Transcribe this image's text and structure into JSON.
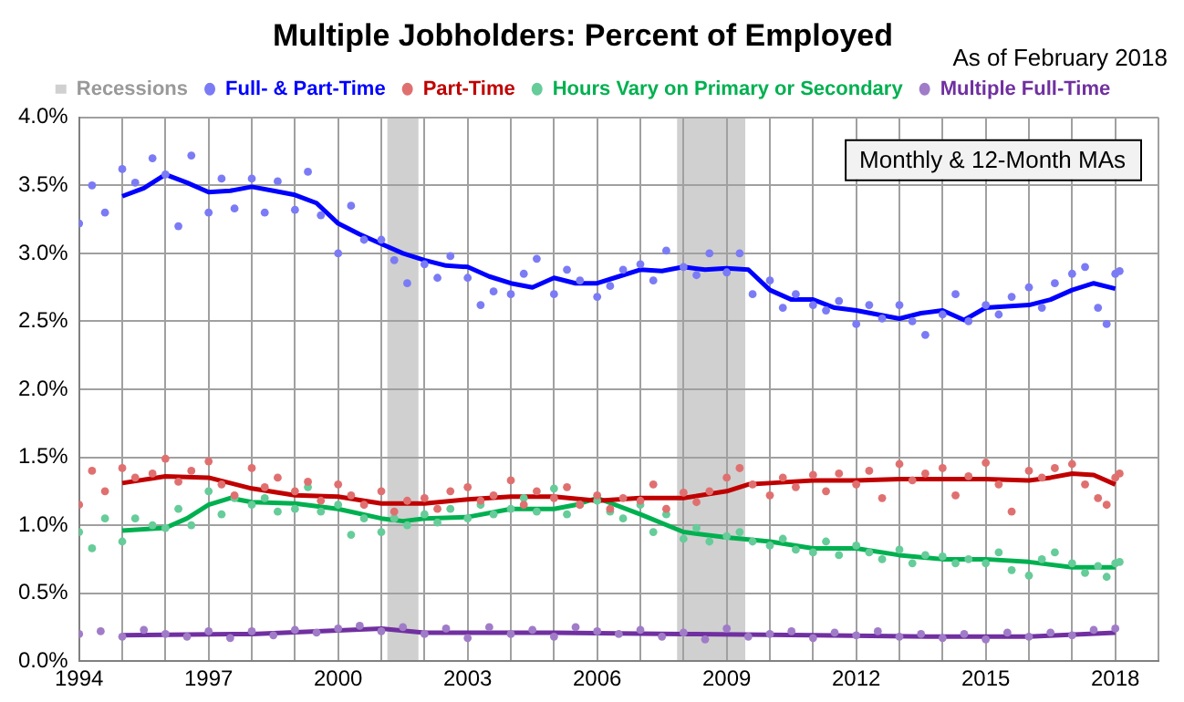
{
  "chart_data": {
    "type": "scatter",
    "title": "Multiple Jobholders: Percent of Employed",
    "annotations": [
      "As of February 2018",
      "Monthly & 12-Month MAs"
    ],
    "xlim": [
      1994,
      2019
    ],
    "xticks": [
      1994,
      {
        "value": 1995,
        "label": null
      },
      {
        "value": 1996,
        "label": null
      },
      1997,
      {
        "value": 1998,
        "label": null
      },
      {
        "value": 1999,
        "label": null
      },
      2000,
      {
        "value": 2001,
        "label": null
      },
      {
        "value": 2002,
        "label": null
      },
      2003,
      {
        "value": 2004,
        "label": null
      },
      {
        "value": 2005,
        "label": null
      },
      2006,
      {
        "value": 2007,
        "label": null
      },
      {
        "value": 2008,
        "label": null
      },
      2009,
      {
        "value": 2010,
        "label": null
      },
      {
        "value": 2011,
        "label": null
      },
      2012,
      {
        "value": 2013,
        "label": null
      },
      {
        "value": 2014,
        "label": null
      },
      2015,
      {
        "value": 2016,
        "label": null
      },
      {
        "value": 2017,
        "label": null
      },
      2018,
      {
        "value": 2019,
        "label": null
      }
    ],
    "ylim": [
      0,
      4
    ],
    "yticks": [
      {
        "value": 0,
        "label": "0.0%"
      },
      {
        "value": 0.5,
        "label": "0.5%"
      },
      {
        "value": 1,
        "label": "1.0%"
      },
      {
        "value": 1.5,
        "label": "1.5%"
      },
      {
        "value": 2,
        "label": "2.0%"
      },
      {
        "value": 2.5,
        "label": "2.5%"
      },
      {
        "value": 3,
        "label": "3.0%"
      },
      {
        "value": 3.5,
        "label": "3.5%"
      },
      {
        "value": 4,
        "label": "4.0%"
      }
    ],
    "grid": true,
    "legend": "top",
    "bands": [
      {
        "axis": "x",
        "from": 2001.14,
        "to": 2001.86,
        "label": "Recessions",
        "color": "#d0d0d0"
      },
      {
        "axis": "x",
        "from": 2007.85,
        "to": 2009.43,
        "color": "#d0d0d0"
      }
    ],
    "series": [
      {
        "name": "Full- & Part-Time",
        "marker": "circle",
        "color": "#7b7bf5",
        "x": [
          1994.0,
          1994.3,
          1994.6,
          1995.0,
          1995.3,
          1995.7,
          1996.0,
          1996.3,
          1996.6,
          1997.0,
          1997.3,
          1997.6,
          1998.0,
          1998.3,
          1998.6,
          1999.0,
          1999.3,
          1999.6,
          2000.0,
          2000.3,
          2000.6,
          2001.0,
          2001.3,
          2001.6,
          2002.0,
          2002.3,
          2002.6,
          2003.0,
          2003.3,
          2003.6,
          2004.0,
          2004.3,
          2004.6,
          2005.0,
          2005.3,
          2005.6,
          2006.0,
          2006.3,
          2006.6,
          2007.0,
          2007.3,
          2007.6,
          2008.0,
          2008.3,
          2008.6,
          2009.0,
          2009.3,
          2009.6,
          2010.0,
          2010.3,
          2010.6,
          2011.0,
          2011.3,
          2011.6,
          2012.0,
          2012.3,
          2012.6,
          2013.0,
          2013.3,
          2013.6,
          2014.0,
          2014.3,
          2014.6,
          2015.0,
          2015.3,
          2015.6,
          2016.0,
          2016.3,
          2016.6,
          2017.0,
          2017.3,
          2017.6,
          2017.8,
          2018.0,
          2018.1
        ],
        "values": [
          3.22,
          3.5,
          3.3,
          3.62,
          3.52,
          3.7,
          3.58,
          3.2,
          3.72,
          3.3,
          3.55,
          3.33,
          3.55,
          3.3,
          3.53,
          3.32,
          3.6,
          3.28,
          3.0,
          3.35,
          3.1,
          3.1,
          2.95,
          2.78,
          2.92,
          2.82,
          2.98,
          2.82,
          2.62,
          2.72,
          2.7,
          2.85,
          2.96,
          2.7,
          2.88,
          2.8,
          2.68,
          2.76,
          2.88,
          2.92,
          2.8,
          3.02,
          2.9,
          2.84,
          3.0,
          2.86,
          3.0,
          2.7,
          2.8,
          2.6,
          2.7,
          2.62,
          2.58,
          2.65,
          2.48,
          2.62,
          2.52,
          2.62,
          2.5,
          2.4,
          2.55,
          2.7,
          2.5,
          2.62,
          2.55,
          2.68,
          2.75,
          2.6,
          2.78,
          2.85,
          2.9,
          2.6,
          2.48,
          2.85,
          2.87
        ]
      },
      {
        "name": "Part-Time",
        "marker": "circle",
        "color": "#e07070",
        "x": [
          1994.0,
          1994.3,
          1994.6,
          1995.0,
          1995.3,
          1995.7,
          1996.0,
          1996.3,
          1996.6,
          1997.0,
          1997.3,
          1997.6,
          1998.0,
          1998.3,
          1998.6,
          1999.0,
          1999.3,
          1999.6,
          2000.0,
          2000.3,
          2000.6,
          2001.0,
          2001.3,
          2001.6,
          2002.0,
          2002.3,
          2002.6,
          2003.0,
          2003.3,
          2003.6,
          2004.0,
          2004.3,
          2004.6,
          2005.0,
          2005.3,
          2005.6,
          2006.0,
          2006.3,
          2006.6,
          2007.0,
          2007.3,
          2007.6,
          2008.0,
          2008.3,
          2008.6,
          2009.0,
          2009.3,
          2009.6,
          2010.0,
          2010.3,
          2010.6,
          2011.0,
          2011.3,
          2011.6,
          2012.0,
          2012.3,
          2012.6,
          2013.0,
          2013.3,
          2013.6,
          2014.0,
          2014.3,
          2014.6,
          2015.0,
          2015.3,
          2015.6,
          2016.0,
          2016.3,
          2016.6,
          2017.0,
          2017.3,
          2017.6,
          2017.8,
          2018.0,
          2018.1
        ],
        "values": [
          1.15,
          1.4,
          1.25,
          1.42,
          1.35,
          1.38,
          1.49,
          1.32,
          1.4,
          1.47,
          1.3,
          1.22,
          1.42,
          1.28,
          1.35,
          1.25,
          1.32,
          1.18,
          1.3,
          1.22,
          1.15,
          1.25,
          1.1,
          1.18,
          1.2,
          1.12,
          1.25,
          1.28,
          1.18,
          1.22,
          1.33,
          1.15,
          1.25,
          1.2,
          1.28,
          1.15,
          1.22,
          1.12,
          1.2,
          1.18,
          1.3,
          1.12,
          1.24,
          1.17,
          1.25,
          1.35,
          1.42,
          1.3,
          1.22,
          1.35,
          1.28,
          1.37,
          1.25,
          1.38,
          1.3,
          1.4,
          1.2,
          1.45,
          1.33,
          1.38,
          1.42,
          1.22,
          1.36,
          1.46,
          1.3,
          1.1,
          1.4,
          1.35,
          1.42,
          1.45,
          1.3,
          1.2,
          1.15,
          1.35,
          1.38
        ]
      },
      {
        "name": "Hours Vary on Primary or Secondary",
        "marker": "circle",
        "color": "#66cc99",
        "x": [
          1994.0,
          1994.3,
          1994.6,
          1995.0,
          1995.3,
          1995.7,
          1996.0,
          1996.3,
          1996.6,
          1997.0,
          1997.3,
          1997.6,
          1998.0,
          1998.3,
          1998.6,
          1999.0,
          1999.3,
          1999.6,
          2000.0,
          2000.3,
          2000.6,
          2001.0,
          2001.3,
          2001.6,
          2002.0,
          2002.3,
          2002.6,
          2003.0,
          2003.3,
          2003.6,
          2004.0,
          2004.3,
          2004.6,
          2005.0,
          2005.3,
          2005.6,
          2006.0,
          2006.3,
          2006.6,
          2007.0,
          2007.3,
          2007.6,
          2008.0,
          2008.3,
          2008.6,
          2009.0,
          2009.3,
          2009.6,
          2010.0,
          2010.3,
          2010.6,
          2011.0,
          2011.3,
          2011.6,
          2012.0,
          2012.3,
          2012.6,
          2013.0,
          2013.3,
          2013.6,
          2014.0,
          2014.3,
          2014.6,
          2015.0,
          2015.3,
          2015.6,
          2016.0,
          2016.3,
          2016.6,
          2017.0,
          2017.3,
          2017.6,
          2017.8,
          2018.0,
          2018.1
        ],
        "values": [
          0.95,
          0.83,
          1.05,
          0.88,
          1.05,
          1.0,
          0.98,
          1.12,
          1.0,
          1.25,
          1.08,
          1.2,
          1.15,
          1.2,
          1.1,
          1.12,
          1.28,
          1.1,
          1.15,
          0.93,
          1.05,
          0.95,
          1.05,
          1.0,
          1.08,
          1.02,
          1.12,
          1.05,
          1.15,
          1.08,
          1.12,
          1.2,
          1.1,
          1.27,
          1.08,
          1.15,
          1.18,
          1.1,
          1.05,
          1.15,
          0.95,
          1.08,
          0.9,
          0.98,
          0.88,
          0.92,
          0.95,
          0.88,
          0.85,
          0.9,
          0.82,
          0.8,
          0.88,
          0.78,
          0.85,
          0.8,
          0.75,
          0.82,
          0.72,
          0.78,
          0.77,
          0.72,
          0.75,
          0.72,
          0.8,
          0.67,
          0.63,
          0.75,
          0.8,
          0.72,
          0.65,
          0.7,
          0.62,
          0.72,
          0.73
        ]
      },
      {
        "name": "Multiple Full-Time",
        "marker": "circle",
        "color": "#a07cc8",
        "x": [
          1994.0,
          1994.5,
          1995.0,
          1995.5,
          1996.0,
          1996.5,
          1997.0,
          1997.5,
          1998.0,
          1998.5,
          1999.0,
          1999.5,
          2000.0,
          2000.5,
          2001.0,
          2001.5,
          2002.0,
          2002.5,
          2003.0,
          2003.5,
          2004.0,
          2004.5,
          2005.0,
          2005.5,
          2006.0,
          2006.5,
          2007.0,
          2007.5,
          2008.0,
          2008.5,
          2009.0,
          2009.5,
          2010.0,
          2010.5,
          2011.0,
          2011.5,
          2012.0,
          2012.5,
          2013.0,
          2013.5,
          2014.0,
          2014.5,
          2015.0,
          2015.5,
          2016.0,
          2016.5,
          2017.0,
          2017.5,
          2018.0
        ],
        "values": [
          0.2,
          0.22,
          0.18,
          0.23,
          0.2,
          0.18,
          0.22,
          0.17,
          0.22,
          0.19,
          0.23,
          0.21,
          0.24,
          0.26,
          0.22,
          0.25,
          0.2,
          0.24,
          0.17,
          0.25,
          0.2,
          0.23,
          0.18,
          0.25,
          0.22,
          0.2,
          0.23,
          0.18,
          0.21,
          0.16,
          0.24,
          0.18,
          0.2,
          0.22,
          0.17,
          0.21,
          0.19,
          0.22,
          0.18,
          0.2,
          0.17,
          0.2,
          0.16,
          0.21,
          0.18,
          0.21,
          0.19,
          0.23,
          0.24
        ]
      },
      {
        "type": "line",
        "marker": "none",
        "color": "#0000ff",
        "x": [
          1995,
          1995.5,
          1996,
          1996.5,
          1997,
          1997.5,
          1998,
          1998.5,
          1999,
          1999.5,
          2000,
          2000.5,
          2001,
          2001.5,
          2002,
          2002.5,
          2003,
          2003.5,
          2004,
          2004.5,
          2005,
          2005.5,
          2006,
          2006.5,
          2007,
          2007.5,
          2008,
          2008.5,
          2009,
          2009.5,
          2010,
          2010.5,
          2011,
          2011.5,
          2012,
          2012.5,
          2013,
          2013.5,
          2014,
          2014.5,
          2015,
          2015.5,
          2016,
          2016.5,
          2017,
          2017.5,
          2018
        ],
        "values": [
          3.42,
          3.48,
          3.58,
          3.52,
          3.45,
          3.46,
          3.49,
          3.46,
          3.43,
          3.37,
          3.22,
          3.14,
          3.07,
          3.0,
          2.95,
          2.91,
          2.9,
          2.83,
          2.78,
          2.75,
          2.82,
          2.78,
          2.78,
          2.83,
          2.88,
          2.87,
          2.9,
          2.88,
          2.89,
          2.88,
          2.73,
          2.66,
          2.66,
          2.6,
          2.58,
          2.55,
          2.52,
          2.56,
          2.58,
          2.51,
          2.6,
          2.61,
          2.62,
          2.66,
          2.73,
          2.78,
          2.74
        ]
      },
      {
        "type": "line",
        "marker": "none",
        "color": "#c00000",
        "x": [
          1995,
          1996,
          1997,
          1998,
          1999,
          2000,
          2001,
          2002,
          2003,
          2004,
          2005,
          2006,
          2007,
          2008,
          2009,
          2009.5,
          2010,
          2011,
          2012,
          2013,
          2014,
          2015,
          2016,
          2016.5,
          2017,
          2017.5,
          2018
        ],
        "values": [
          1.31,
          1.36,
          1.35,
          1.27,
          1.22,
          1.21,
          1.16,
          1.16,
          1.19,
          1.21,
          1.21,
          1.18,
          1.2,
          1.2,
          1.25,
          1.3,
          1.31,
          1.33,
          1.33,
          1.34,
          1.34,
          1.34,
          1.33,
          1.35,
          1.38,
          1.37,
          1.3
        ]
      },
      {
        "type": "line",
        "marker": "none",
        "color": "#00b050",
        "x": [
          1995,
          1996,
          1996.5,
          1997,
          1997.5,
          1998,
          1999,
          2000,
          2001,
          2001.5,
          2002,
          2003,
          2004,
          2005,
          2005.5,
          2006,
          2007,
          2008,
          2009,
          2010,
          2011,
          2012,
          2013,
          2014,
          2015,
          2016,
          2017,
          2018
        ],
        "values": [
          0.96,
          0.98,
          1.05,
          1.15,
          1.2,
          1.17,
          1.16,
          1.12,
          1.05,
          1.03,
          1.05,
          1.06,
          1.12,
          1.12,
          1.15,
          1.2,
          1.08,
          0.95,
          0.91,
          0.88,
          0.83,
          0.83,
          0.78,
          0.75,
          0.75,
          0.73,
          0.69,
          0.69
        ]
      },
      {
        "type": "line",
        "marker": "none",
        "color": "#7030a0",
        "x": [
          1995,
          1998,
          2001,
          2002,
          2005,
          2008,
          2011,
          2014,
          2016,
          2018
        ],
        "values": [
          0.19,
          0.2,
          0.24,
          0.21,
          0.21,
          0.2,
          0.19,
          0.18,
          0.18,
          0.21
        ]
      }
    ]
  }
}
